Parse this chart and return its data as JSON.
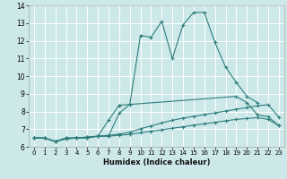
{
  "xlabel": "Humidex (Indice chaleur)",
  "xlim": [
    -0.5,
    23.5
  ],
  "ylim": [
    6,
    14
  ],
  "bg_color": "#cde8e8",
  "line_color": "#2e7d7d",
  "grid_color": "#ffffff",
  "lines": [
    {
      "x": [
        0,
        1,
        2,
        3,
        4,
        5,
        6,
        7,
        8,
        9,
        10,
        11,
        12,
        13,
        14,
        15,
        16,
        17,
        18,
        19,
        20,
        21
      ],
      "y": [
        6.5,
        6.5,
        6.3,
        6.5,
        6.5,
        6.5,
        6.6,
        6.6,
        7.9,
        8.4,
        12.3,
        12.2,
        13.1,
        11.0,
        12.9,
        13.6,
        13.6,
        11.9,
        10.5,
        9.65,
        8.85,
        8.5
      ]
    },
    {
      "x": [
        0,
        1,
        2,
        3,
        4,
        5,
        6,
        7,
        8
      ],
      "y": [
        6.5,
        6.5,
        6.3,
        6.5,
        6.5,
        6.5,
        6.6,
        7.5,
        8.35
      ]
    },
    {
      "x": [
        8,
        19,
        20,
        21,
        22,
        23
      ],
      "y": [
        8.35,
        8.85,
        8.5,
        7.8,
        7.7,
        7.2
      ]
    },
    {
      "x": [
        0,
        1,
        2,
        3,
        4,
        5,
        6,
        7,
        8,
        9,
        10,
        11,
        12,
        13,
        14,
        15,
        16,
        17,
        18,
        19,
        20,
        21,
        22,
        23
      ],
      "y": [
        6.5,
        6.5,
        6.3,
        6.45,
        6.5,
        6.55,
        6.6,
        6.6,
        6.65,
        6.7,
        6.8,
        6.88,
        6.96,
        7.05,
        7.13,
        7.22,
        7.3,
        7.38,
        7.47,
        7.55,
        7.6,
        7.65,
        7.55,
        7.2
      ]
    },
    {
      "x": [
        0,
        1,
        2,
        3,
        4,
        5,
        6,
        7,
        8,
        9,
        10,
        11,
        12,
        13,
        14,
        15,
        16,
        17,
        18,
        19,
        20,
        21,
        22,
        23
      ],
      "y": [
        6.5,
        6.5,
        6.3,
        6.45,
        6.5,
        6.55,
        6.6,
        6.65,
        6.72,
        6.82,
        7.02,
        7.18,
        7.35,
        7.5,
        7.62,
        7.72,
        7.82,
        7.92,
        8.02,
        8.12,
        8.22,
        8.32,
        8.38,
        7.68
      ]
    }
  ]
}
